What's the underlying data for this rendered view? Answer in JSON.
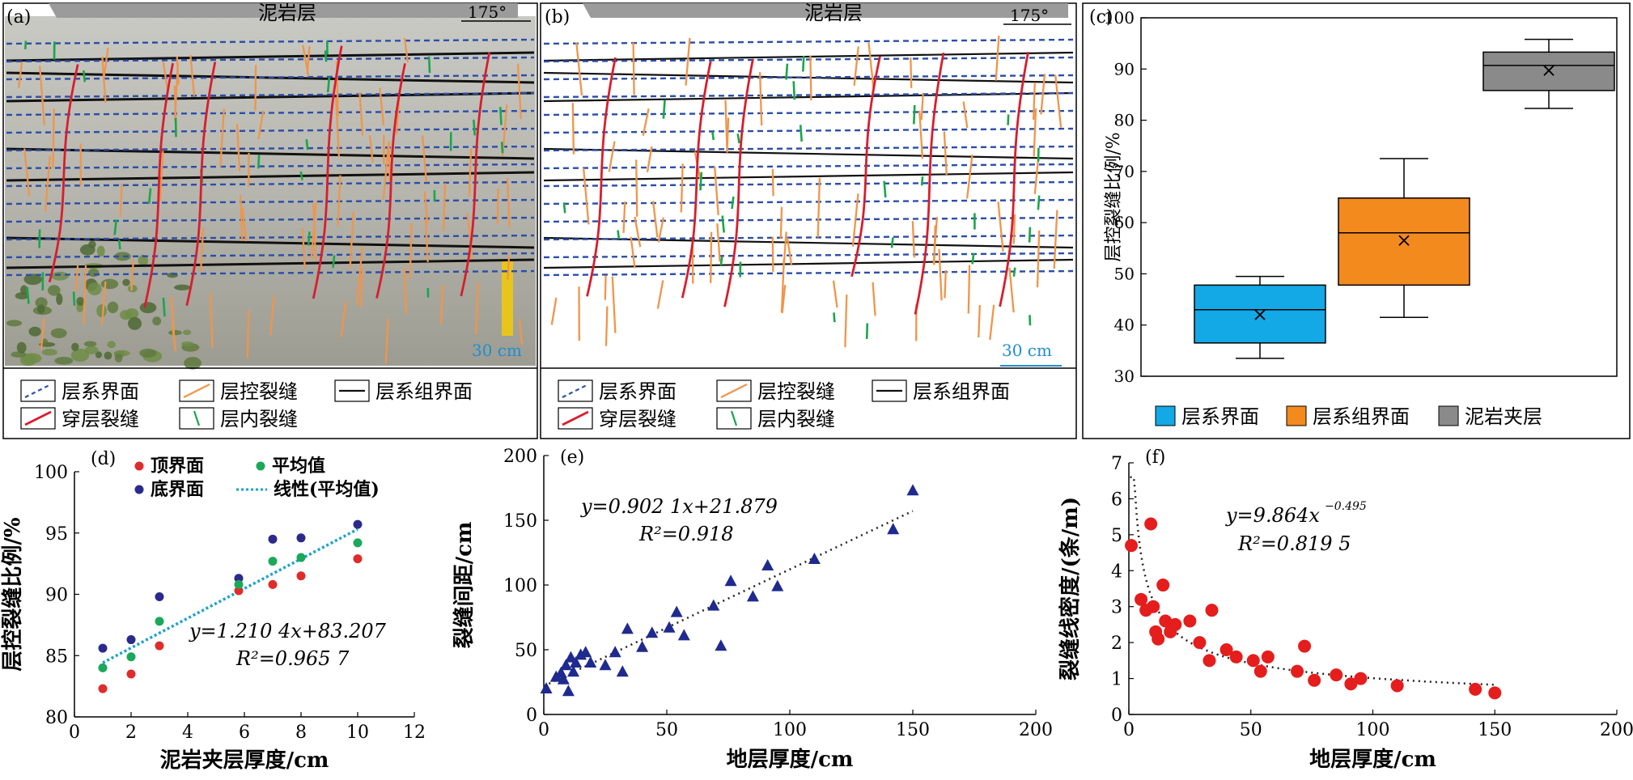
{
  "colors": {
    "layer_interface": "#2b4fa8",
    "layer_controlled_fracture": "#f0954a",
    "layer_group_interface": "#111111",
    "through_layer_fracture": "#d81e2c",
    "intra_layer_fracture": "#1aa64a",
    "box_blue": "#12a9e6",
    "box_orange": "#f28a1e",
    "box_gray": "#8a8a8a",
    "scale_bar": "#1d8fd1",
    "d_top": "#e02b2b",
    "d_bottom": "#2a2a8c",
    "d_mean": "#1aa85a",
    "d_fit": "#19a3c9",
    "e_marker": "#1f2a8f",
    "f_marker": "#e51d1d"
  },
  "panel_a": {
    "label": "(a)",
    "banner": "泥岩层",
    "orientation": "175°",
    "scale": "30 cm",
    "legend": [
      {
        "icon": "dashed-blue-line-icon",
        "label": "层系界面"
      },
      {
        "icon": "orange-line-icon",
        "label": "层控裂缝"
      },
      {
        "icon": "black-line-icon",
        "label": "层系组界面"
      },
      {
        "icon": "red-line-icon",
        "label": "穿层裂缝"
      },
      {
        "icon": "green-line-icon",
        "label": "层内裂缝"
      }
    ]
  },
  "panel_b": {
    "label": "(b)",
    "banner": "泥岩层",
    "orientation": "175°",
    "scale": "30 cm",
    "legend": [
      {
        "icon": "dashed-blue-line-icon",
        "label": "层系界面"
      },
      {
        "icon": "orange-line-icon",
        "label": "层控裂缝"
      },
      {
        "icon": "black-line-icon",
        "label": "层系组界面"
      },
      {
        "icon": "red-line-icon",
        "label": "穿层裂缝"
      },
      {
        "icon": "green-line-icon",
        "label": "层内裂缝"
      }
    ]
  },
  "chart_data": [
    {
      "panel": "(c)",
      "type": "box",
      "ylabel": "层控裂缝比例/%",
      "ylim": [
        30,
        100
      ],
      "yticks": [
        30,
        40,
        50,
        60,
        70,
        80,
        90,
        100
      ],
      "categories": [
        "层系界面",
        "层系组界面",
        "泥岩夹层"
      ],
      "boxes": [
        {
          "min": 33.5,
          "q1": 36.5,
          "median": 43.0,
          "q3": 47.8,
          "max": 49.5,
          "mean": 42.0
        },
        {
          "min": 41.5,
          "q1": 47.8,
          "median": 58.0,
          "q3": 64.8,
          "max": 72.5,
          "mean": 56.5
        },
        {
          "min": 82.3,
          "q1": 85.8,
          "median": 90.7,
          "q3": 93.3,
          "max": 95.8,
          "mean": 89.7
        }
      ],
      "legend": [
        "层系界面",
        "层系组界面",
        "泥岩夹层"
      ],
      "legend_position": "bottom"
    },
    {
      "panel": "(d)",
      "type": "scatter",
      "xlabel": "泥岩夹层厚度/cm",
      "ylabel": "层控裂缝比例/%",
      "xlim": [
        0,
        12
      ],
      "ylim": [
        80,
        100
      ],
      "xticks": [
        0,
        2,
        4,
        6,
        8,
        10,
        12
      ],
      "yticks": [
        80,
        85,
        90,
        95,
        100
      ],
      "series": [
        {
          "name": "顶界面",
          "x": [
            1,
            2,
            3,
            5.8,
            7,
            8,
            10
          ],
          "y": [
            82.3,
            83.5,
            85.8,
            90.3,
            90.8,
            91.5,
            92.9
          ]
        },
        {
          "name": "底界面",
          "x": [
            1,
            2,
            3,
            5.8,
            7,
            8,
            10
          ],
          "y": [
            85.6,
            86.3,
            89.8,
            91.3,
            94.5,
            94.6,
            95.7
          ]
        },
        {
          "name": "平均值",
          "x": [
            1,
            2,
            3,
            5.8,
            7,
            8,
            10
          ],
          "y": [
            84.0,
            84.9,
            87.8,
            90.8,
            92.7,
            93.0,
            94.2
          ]
        }
      ],
      "fit": {
        "name": "线性(平均值)",
        "slope": 1.2104,
        "intercept": 83.207,
        "x_range": [
          1,
          10
        ]
      },
      "legend_position": "top-left",
      "annotation": {
        "equation": "y=1.210 4x+83.207",
        "r2": "R²=0.965 7"
      }
    },
    {
      "panel": "(e)",
      "type": "scatter",
      "xlabel": "地层厚度/cm",
      "ylabel": "裂缝间距/cm",
      "xlim": [
        0,
        200
      ],
      "ylim": [
        0,
        200
      ],
      "xticks": [
        0,
        50,
        100,
        150,
        200
      ],
      "yticks": [
        0,
        50,
        100,
        150,
        200
      ],
      "x": [
        1,
        5,
        7,
        8,
        9,
        10,
        11,
        12,
        13,
        15,
        17,
        19,
        25,
        29,
        32,
        34,
        40,
        44,
        51,
        54,
        57,
        69,
        72,
        76,
        85,
        91,
        95,
        110,
        142,
        150
      ],
      "y": [
        20,
        29,
        32,
        27,
        38,
        18,
        44,
        33,
        40,
        46,
        48,
        40,
        38,
        48,
        33,
        66,
        52,
        63,
        67,
        79,
        61,
        84,
        53,
        103,
        91,
        115,
        99,
        120,
        143,
        173
      ],
      "fit": {
        "slope": 0.9021,
        "intercept": 21.879,
        "x_range": [
          0,
          150
        ]
      },
      "annotation": {
        "equation": "y=0.902 1x+21.879",
        "r2": "R²=0.918"
      }
    },
    {
      "panel": "(f)",
      "type": "scatter",
      "xlabel": "地层厚度/cm",
      "ylabel": "裂缝线密度/(条/m)",
      "xlim": [
        0,
        200
      ],
      "ylim": [
        0,
        7
      ],
      "xticks": [
        0,
        50,
        100,
        150,
        200
      ],
      "yticks": [
        0,
        1,
        2,
        3,
        4,
        5,
        6,
        7
      ],
      "x": [
        1,
        5,
        7,
        9,
        10,
        11,
        12,
        14,
        15,
        17,
        19,
        25,
        29,
        33,
        34,
        40,
        44,
        51,
        54,
        57,
        69,
        72,
        76,
        85,
        91,
        95,
        110,
        142,
        150
      ],
      "y": [
        4.7,
        3.2,
        2.9,
        5.3,
        3.0,
        2.3,
        2.1,
        3.6,
        2.6,
        2.3,
        2.5,
        2.6,
        2.0,
        1.5,
        2.9,
        1.8,
        1.6,
        1.5,
        1.2,
        1.6,
        1.2,
        1.9,
        0.95,
        1.1,
        0.85,
        1.0,
        0.8,
        0.7,
        0.6
      ],
      "fit": {
        "type": "power",
        "a": 9.864,
        "b": -0.495,
        "x_range": [
          0.5,
          150
        ]
      },
      "annotation": {
        "equation": "y=9.864x",
        "exponent": "−0.495",
        "r2": "R²=0.819 5"
      }
    }
  ]
}
